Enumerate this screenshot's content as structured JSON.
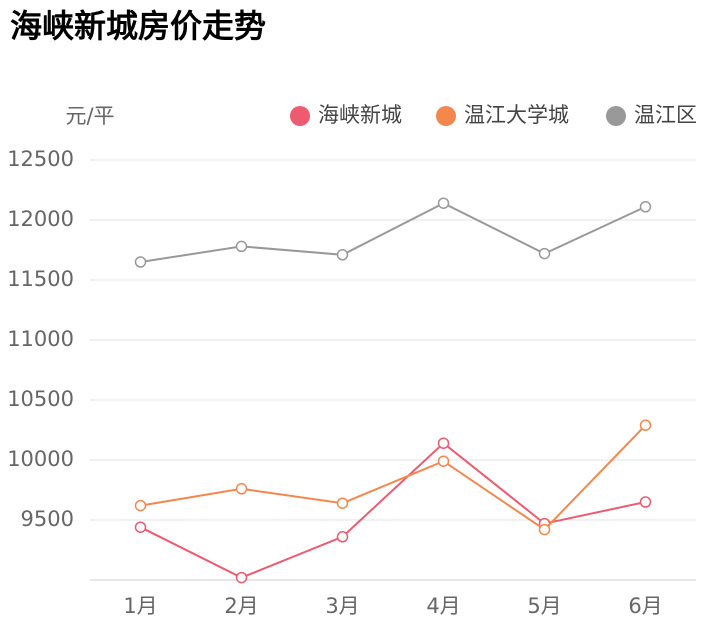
{
  "chart_data": {
    "type": "line",
    "title": "海峡新城房价走势",
    "y_unit": "元/平",
    "categories": [
      "1月",
      "2月",
      "3月",
      "4月",
      "5月",
      "6月"
    ],
    "series": [
      {
        "name": "海峡新城",
        "color": "#ee5a6f",
        "values": [
          9440,
          9020,
          9360,
          10140,
          9470,
          9650
        ]
      },
      {
        "name": "温江大学城",
        "color": "#f4874b",
        "values": [
          9620,
          9760,
          9640,
          9990,
          9420,
          10290
        ]
      },
      {
        "name": "温江区",
        "color": "#999999",
        "values": [
          11650,
          11780,
          11710,
          12140,
          11720,
          12110
        ]
      }
    ],
    "ylim": [
      9000,
      12500
    ],
    "yticks": [
      9500,
      10000,
      10500,
      11000,
      11500,
      12000,
      12500
    ],
    "grid": true
  }
}
